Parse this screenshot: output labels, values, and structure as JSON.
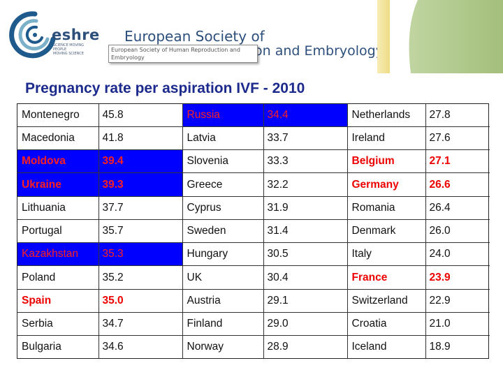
{
  "header": {
    "logo_word": "eshre",
    "tagline_lines": [
      "SCIENCE MOVING",
      "PEOPLE",
      "MOVING SCIENCE"
    ],
    "society_name_upper": "European Society of",
    "society_name_lower": "on and Embryology",
    "tooltip_lines": [
      "European Society of Human Reproduction and",
      "Embryology"
    ]
  },
  "title": "Pregnancy rate per aspiration IVF - 2010",
  "colors": {
    "title": "#1b2a8c",
    "highlight_fill": "#0000ff",
    "highlight_text": "#ff1f1f",
    "bold_red_text": "#ee0000",
    "brand_blue": "#2d4f7c",
    "gold_bar": "#eedd86",
    "green_bar": "#a3bf7b"
  },
  "table": {
    "rows": [
      [
        {
          "country": "Montenegro",
          "value": "45.8",
          "style": "normal"
        },
        {
          "country": "Russia",
          "value": "34.4",
          "style": "blue"
        },
        {
          "country": "Netherlands",
          "value": "27.8",
          "style": "normal"
        }
      ],
      [
        {
          "country": "Macedonia",
          "value": "41.8",
          "style": "normal"
        },
        {
          "country": "Latvia",
          "value": "33.7",
          "style": "normal"
        },
        {
          "country": "Ireland",
          "value": "27.6",
          "style": "normal"
        }
      ],
      [
        {
          "country": "Moldova",
          "value": "39.4",
          "style": "blue-bold"
        },
        {
          "country": "Slovenia",
          "value": "33.3",
          "style": "normal"
        },
        {
          "country": "Belgium",
          "value": "27.1",
          "style": "red-bold"
        }
      ],
      [
        {
          "country": "Ukraine",
          "value": "39.3",
          "style": "blue-bold"
        },
        {
          "country": "Greece",
          "value": "32.2",
          "style": "normal"
        },
        {
          "country": "Germany",
          "value": "26.6",
          "style": "red-bold"
        }
      ],
      [
        {
          "country": "Lithuania",
          "value": "37.7",
          "style": "normal"
        },
        {
          "country": "Cyprus",
          "value": "31.9",
          "style": "normal"
        },
        {
          "country": "Romania",
          "value": "26.4",
          "style": "normal"
        }
      ],
      [
        {
          "country": "Portugal",
          "value": "35.7",
          "style": "normal"
        },
        {
          "country": "Sweden",
          "value": "31.4",
          "style": "normal"
        },
        {
          "country": "Denmark",
          "value": "26.0",
          "style": "normal"
        }
      ],
      [
        {
          "country": "Kazakhstan",
          "value": "35.3",
          "style": "blue"
        },
        {
          "country": "Hungary",
          "value": "30.5",
          "style": "normal"
        },
        {
          "country": "Italy",
          "value": "24.0",
          "style": "normal"
        }
      ],
      [
        {
          "country": "Poland",
          "value": "35.2",
          "style": "normal"
        },
        {
          "country": "UK",
          "value": "30.4",
          "style": "normal"
        },
        {
          "country": "France",
          "value": "23.9",
          "style": "red-bold"
        }
      ],
      [
        {
          "country": "Spain",
          "value": "35.0",
          "style": "red-bold"
        },
        {
          "country": "Austria",
          "value": "29.1",
          "style": "normal"
        },
        {
          "country": "Switzerland",
          "value": "22.9",
          "style": "normal"
        }
      ],
      [
        {
          "country": "Serbia",
          "value": "34.7",
          "style": "normal"
        },
        {
          "country": "Finland",
          "value": "29.0",
          "style": "normal"
        },
        {
          "country": "Croatia",
          "value": "21.0",
          "style": "normal"
        }
      ],
      [
        {
          "country": "Bulgaria",
          "value": "34.6",
          "style": "normal"
        },
        {
          "country": "Norway",
          "value": "28.9",
          "style": "normal"
        },
        {
          "country": "Iceland",
          "value": "18.9",
          "style": "normal"
        }
      ]
    ]
  }
}
